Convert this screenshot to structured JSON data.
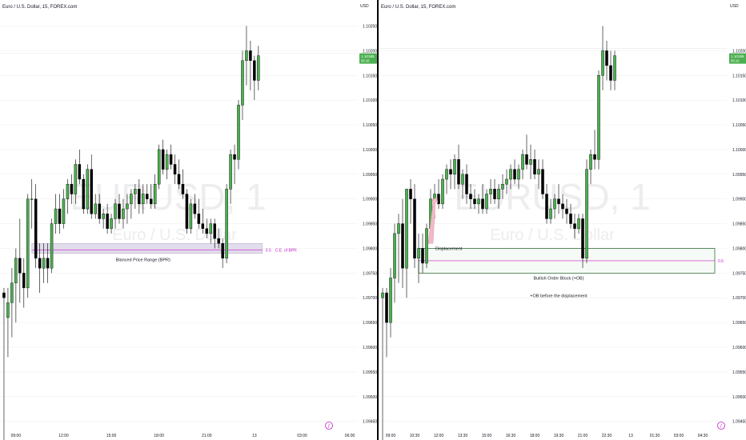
{
  "colors": {
    "up_fill": "#4caf50",
    "down_fill": "#000000",
    "bullish_box_fill": "#e6f0e6",
    "bullish_box_stroke": "#1b5e20",
    "bpr_fill": "#d8d2e6",
    "bpr_stroke": "#b3a7cc",
    "ce_color": "#c71ec9",
    "arrow_color": "#f2b8c6",
    "price_tag_bg": "#4caf50",
    "watermark": "#ededf0",
    "grid": "#e8e8e8",
    "divider": "#000000"
  },
  "chart_data": [
    {
      "type": "candlestick",
      "title": "Euro / U.S. Dollar, 15, FOREX.com",
      "watermark_symbol": "EURUSD, 1",
      "watermark_name": "Euro / U.S. Dollar",
      "currency_label": "USD",
      "y_ticks": [
        "1.10250",
        "1.10200",
        "1.10150",
        "1.10100",
        "1.10050",
        "1.10000",
        "1.09950",
        "1.09900",
        "1.09850",
        "1.09800",
        "1.09750",
        "1.09700",
        "1.09650",
        "1.09600",
        "1.09550",
        "1.09500",
        "1.09450"
      ],
      "ylim": [
        1.0943,
        1.1028
      ],
      "x_ticks": [
        {
          "label": "09:00",
          "x": 4
        },
        {
          "label": "12:00",
          "x": 16
        },
        {
          "label": "15:00",
          "x": 28
        },
        {
          "label": "18:00",
          "x": 40
        },
        {
          "label": "21:00",
          "x": 52
        },
        {
          "label": "13",
          "x": 64
        },
        {
          "label": "03:00",
          "x": 76
        },
        {
          "label": "06:00",
          "x": 88
        }
      ],
      "xlim": [
        0,
        90
      ],
      "price_tag": {
        "price_text": "1.10185",
        "time_text": "05:10",
        "price": 1.10185
      },
      "current_line": 1.10195,
      "candles": [
        [
          1,
          1.0971,
          1.0972,
          1.0941,
          1.097
        ],
        [
          2,
          1.0966,
          1.0972,
          1.0958,
          1.0969
        ],
        [
          3,
          1.0969,
          1.0976,
          1.0962,
          1.0973
        ],
        [
          4,
          1.0973,
          1.098,
          1.0965,
          1.0978
        ],
        [
          5,
          1.0978,
          1.0986,
          1.0969,
          1.0975
        ],
        [
          6,
          1.0975,
          1.0978,
          1.0968,
          1.0972
        ],
        [
          7,
          1.0972,
          1.0991,
          1.097,
          1.099
        ],
        [
          8,
          1.099,
          1.0994,
          1.0984,
          1.099
        ],
        [
          9,
          1.099,
          1.0993,
          1.0976,
          1.0978
        ],
        [
          10,
          1.0978,
          1.0981,
          1.0971,
          1.0976
        ],
        [
          11,
          1.0976,
          1.0981,
          1.0973,
          1.0978
        ],
        [
          12,
          1.0978,
          1.0981,
          1.0973,
          1.0976
        ],
        [
          13,
          1.0976,
          1.0986,
          1.0975,
          1.0985
        ],
        [
          14,
          1.0985,
          1.0991,
          1.0983,
          1.0988
        ],
        [
          15,
          1.0988,
          1.0991,
          1.0983,
          1.0985
        ],
        [
          16,
          1.0985,
          1.0992,
          1.0984,
          1.099
        ],
        [
          17,
          1.099,
          1.0994,
          1.0987,
          1.0993
        ],
        [
          18,
          1.0993,
          1.0995,
          1.0989,
          1.0991
        ],
        [
          19,
          1.0991,
          1.0998,
          1.0989,
          1.0997
        ],
        [
          20,
          1.0997,
          1.1,
          1.0993,
          1.0994
        ],
        [
          21,
          1.0994,
          1.0995,
          1.0987,
          1.0988
        ],
        [
          22,
          1.0988,
          1.0997,
          1.0987,
          1.0996
        ],
        [
          23,
          1.0996,
          1.0999,
          1.0986,
          1.0987
        ],
        [
          24,
          1.0987,
          1.0991,
          1.0986,
          1.0989
        ],
        [
          25,
          1.0989,
          1.0991,
          1.0985,
          1.0986
        ],
        [
          26,
          1.0986,
          1.0988,
          1.0984,
          1.0987
        ],
        [
          27,
          1.0987,
          1.0989,
          1.0983,
          1.0984
        ],
        [
          28,
          1.0984,
          1.0987,
          1.0983,
          1.0986
        ],
        [
          29,
          1.0986,
          1.099,
          1.0984,
          1.0989
        ],
        [
          30,
          1.0989,
          1.0991,
          1.0985,
          1.0986
        ],
        [
          31,
          1.0986,
          1.099,
          1.0984,
          1.0988
        ],
        [
          32,
          1.0988,
          1.0991,
          1.0985,
          1.0989
        ],
        [
          33,
          1.0989,
          1.0992,
          1.0986,
          1.0991
        ],
        [
          34,
          1.0991,
          1.0993,
          1.0988,
          1.0992
        ],
        [
          35,
          1.0992,
          1.0994,
          1.0987,
          1.0989
        ],
        [
          36,
          1.0989,
          1.0993,
          1.0987,
          1.0991
        ],
        [
          37,
          1.0991,
          1.0993,
          1.0989,
          1.099
        ],
        [
          38,
          1.099,
          1.0993,
          1.0988,
          1.0989
        ],
        [
          39,
          1.0989,
          1.0995,
          1.0988,
          1.0993
        ],
        [
          40,
          1.0993,
          1.1001,
          1.0992,
          1.1
        ],
        [
          41,
          1.1,
          1.1002,
          1.0995,
          1.0996
        ],
        [
          42,
          1.0996,
          1.1,
          1.0994,
          1.0999
        ],
        [
          43,
          1.0999,
          1.1001,
          1.0996,
          1.0997
        ],
        [
          44,
          1.0997,
          1.0999,
          1.0993,
          1.0995
        ],
        [
          45,
          1.0995,
          1.0998,
          1.0992,
          1.0993
        ],
        [
          46,
          1.0993,
          1.0996,
          1.099,
          1.0991
        ],
        [
          47,
          1.0991,
          1.0992,
          1.0983,
          1.0984
        ],
        [
          48,
          1.0984,
          1.099,
          1.0983,
          1.0989
        ],
        [
          49,
          1.0989,
          1.0991,
          1.0986,
          1.0987
        ],
        [
          50,
          1.0987,
          1.099,
          1.0984,
          1.0985
        ],
        [
          51,
          1.0985,
          1.0988,
          1.0983,
          1.0984
        ],
        [
          52,
          1.0984,
          1.0986,
          1.0982,
          1.0983
        ],
        [
          53,
          1.0983,
          1.0986,
          1.0981,
          1.0985
        ],
        [
          54,
          1.0985,
          1.0986,
          1.098,
          1.0982
        ],
        [
          55,
          1.0982,
          1.0984,
          1.098,
          1.0981
        ],
        [
          56,
          1.0981,
          1.0982,
          1.0976,
          1.0978
        ],
        [
          57,
          1.0978,
          1.0993,
          1.0977,
          1.0992
        ],
        [
          58,
          1.0992,
          1.1,
          1.0989,
          1.0999
        ],
        [
          59,
          1.0999,
          1.1001,
          1.0993,
          1.0998
        ],
        [
          60,
          1.0998,
          1.101,
          1.0996,
          1.1009
        ],
        [
          61,
          1.1009,
          1.102,
          1.1006,
          1.1018
        ],
        [
          62,
          1.1018,
          1.1025,
          1.1013,
          1.102
        ],
        [
          63,
          1.102,
          1.1022,
          1.1012,
          1.1018
        ],
        [
          64,
          1.1018,
          1.1019,
          1.101,
          1.1014
        ],
        [
          65,
          1.1014,
          1.1021,
          1.1012,
          1.1019
        ]
      ],
      "annotations": {
        "zone": {
          "kind": "bpr",
          "y_top": 1.0981,
          "y_bottom": 1.0979,
          "x_start": 8,
          "x_end": 66,
          "label": "Blanced Price Range (BPR)",
          "mid": 1.09797,
          "mid_label": "0.5",
          "ce_label": "C.E. of BPR"
        }
      }
    },
    {
      "type": "candlestick",
      "title": "Euro / U.S. Dollar, 15, FOREX.com",
      "watermark_symbol": "EURUSD, 1",
      "watermark_name": "Euro / U.S. Dollar",
      "currency_label": "USD",
      "y_ticks": [
        "1.10200",
        "1.10150",
        "1.10100",
        "1.10050",
        "1.10000",
        "1.09950",
        "1.09900",
        "1.09850",
        "1.09800",
        "1.09750",
        "1.09700",
        "1.09650",
        "1.09600",
        "1.09550",
        "1.09500",
        "1.09450"
      ],
      "ylim": [
        1.0943,
        1.1028
      ],
      "x_ticks": [
        {
          "label": "09:00",
          "x": 3
        },
        {
          "label": "10:30",
          "x": 9
        },
        {
          "label": "12:00",
          "x": 15
        },
        {
          "label": "13:30",
          "x": 21
        },
        {
          "label": "15:00",
          "x": 27
        },
        {
          "label": "16:30",
          "x": 33
        },
        {
          "label": "18:00",
          "x": 39
        },
        {
          "label": "19:30",
          "x": 45
        },
        {
          "label": "21:00",
          "x": 51
        },
        {
          "label": "22:30",
          "x": 57
        },
        {
          "label": "13",
          "x": 63
        },
        {
          "label": "01:30",
          "x": 69
        },
        {
          "label": "03:00",
          "x": 75
        },
        {
          "label": "04:30",
          "x": 81
        }
      ],
      "xlim": [
        0,
        87
      ],
      "price_tag": {
        "price_text": "1.10185",
        "time_text": "05:10",
        "price": 1.10185
      },
      "current_line": 1.10205,
      "candles": [
        [
          1,
          1.097,
          1.0972,
          1.0941,
          1.0971
        ],
        [
          2,
          1.0971,
          1.0972,
          1.0958,
          1.0965
        ],
        [
          3,
          1.0965,
          1.0976,
          1.0962,
          1.0974
        ],
        [
          4,
          1.0974,
          1.0985,
          1.0969,
          1.0983
        ],
        [
          5,
          1.0983,
          1.0987,
          1.0973,
          1.0985
        ],
        [
          6,
          1.0985,
          1.099,
          1.0972,
          1.0976
        ],
        [
          7,
          1.0976,
          1.0992,
          1.097,
          1.0992
        ],
        [
          8,
          1.0992,
          1.0994,
          1.0985,
          1.099
        ],
        [
          9,
          1.099,
          1.0993,
          1.0976,
          1.0978
        ],
        [
          10,
          1.0978,
          1.0983,
          1.0973,
          1.098
        ],
        [
          11,
          1.098,
          1.0983,
          1.0975,
          1.0977
        ],
        [
          12,
          1.0977,
          1.0985,
          1.0976,
          1.0984
        ],
        [
          13,
          1.0984,
          1.0992,
          1.0983,
          1.099
        ],
        [
          14,
          1.099,
          1.0993,
          1.0986,
          1.0991
        ],
        [
          15,
          1.0991,
          1.0994,
          1.0988,
          1.0989
        ],
        [
          16,
          1.0989,
          1.0995,
          1.0988,
          1.0994
        ],
        [
          17,
          1.0994,
          1.0997,
          1.0991,
          1.0996
        ],
        [
          18,
          1.0996,
          1.0998,
          1.0992,
          1.0995
        ],
        [
          19,
          1.0995,
          1.0999,
          1.0992,
          1.0998
        ],
        [
          20,
          1.0998,
          1.1001,
          1.0992,
          1.0993
        ],
        [
          21,
          1.0993,
          1.0996,
          1.099,
          1.0995
        ],
        [
          22,
          1.0995,
          1.0997,
          1.0989,
          1.0991
        ],
        [
          23,
          1.0991,
          1.0993,
          1.0988,
          1.099
        ],
        [
          24,
          1.099,
          1.0992,
          1.0988,
          1.0989
        ],
        [
          25,
          1.0989,
          1.0991,
          1.0987,
          1.099
        ],
        [
          26,
          1.099,
          1.0993,
          1.0987,
          1.0988
        ],
        [
          27,
          1.0988,
          1.0992,
          1.0987,
          1.0991
        ],
        [
          28,
          1.0991,
          1.0994,
          1.0989,
          1.0992
        ],
        [
          29,
          1.0992,
          1.0994,
          1.0989,
          1.099
        ],
        [
          30,
          1.099,
          1.0993,
          1.0988,
          1.0992
        ],
        [
          31,
          1.0992,
          1.0995,
          1.099,
          1.0993
        ],
        [
          32,
          1.0993,
          1.0996,
          1.0991,
          1.0994
        ],
        [
          33,
          1.0994,
          1.0997,
          1.0992,
          1.0996
        ],
        [
          34,
          1.0996,
          1.0998,
          1.0993,
          1.0994
        ],
        [
          35,
          1.0994,
          1.0997,
          1.0992,
          1.0996
        ],
        [
          36,
          1.0996,
          1.1,
          1.0994,
          1.0999
        ],
        [
          37,
          1.0999,
          1.1003,
          1.0996,
          1.0997
        ],
        [
          38,
          1.0997,
          1.1001,
          1.0994,
          1.0998
        ],
        [
          39,
          1.0998,
          1.1,
          1.0994,
          1.0995
        ],
        [
          40,
          1.0995,
          1.0998,
          1.0992,
          1.0996
        ],
        [
          41,
          1.0996,
          1.0998,
          1.099,
          1.0991
        ],
        [
          42,
          1.0991,
          1.0993,
          1.0985,
          1.0986
        ],
        [
          43,
          1.0986,
          1.099,
          1.0985,
          1.0988
        ],
        [
          44,
          1.0988,
          1.0991,
          1.0986,
          1.099
        ],
        [
          45,
          1.099,
          1.0993,
          1.0987,
          1.0989
        ],
        [
          46,
          1.0989,
          1.0991,
          1.0986,
          1.0988
        ],
        [
          47,
          1.0988,
          1.099,
          1.0985,
          1.0987
        ],
        [
          48,
          1.0987,
          1.0989,
          1.0984,
          1.0985
        ],
        [
          49,
          1.0985,
          1.0987,
          1.0982,
          1.0984
        ],
        [
          50,
          1.0984,
          1.0987,
          1.0983,
          1.0986
        ],
        [
          51,
          1.0986,
          1.0987,
          1.0976,
          1.0978
        ],
        [
          52,
          1.0978,
          1.0998,
          1.0977,
          1.0996
        ],
        [
          53,
          1.0996,
          1.1,
          1.0993,
          1.0999
        ],
        [
          54,
          1.0999,
          1.1004,
          1.0996,
          1.0998
        ],
        [
          55,
          1.0998,
          1.1016,
          1.0996,
          1.1015
        ],
        [
          56,
          1.1015,
          1.1025,
          1.1012,
          1.102
        ],
        [
          57,
          1.102,
          1.1022,
          1.1014,
          1.1017
        ],
        [
          58,
          1.1017,
          1.102,
          1.1012,
          1.1014
        ],
        [
          59,
          1.1014,
          1.102,
          1.1012,
          1.1019
        ]
      ],
      "annotations": {
        "zone": {
          "kind": "ob",
          "y_top": 1.098,
          "y_bottom": 1.0975,
          "x_start": 10,
          "x_end": 84,
          "label": "Bullish Order Block (+OB)",
          "mid": 1.09775,
          "mid_label": "0.5",
          "ce_label": "C.E. of +OB"
        },
        "displacement_label": "Displacement",
        "note": "+OB before the displacement"
      }
    }
  ]
}
